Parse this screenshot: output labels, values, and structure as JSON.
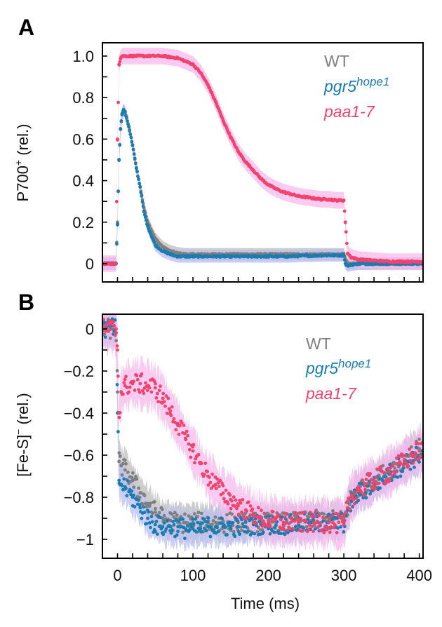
{
  "chart_data": [
    {
      "type": "scatter",
      "panel_label": "A",
      "ylabel_main": "P700",
      "ylabel_sup": "+",
      "ylabel_tail": " (rel.)",
      "xlabel": "",
      "xlim": [
        -20,
        405
      ],
      "ylim": [
        -0.088,
        1.064
      ],
      "yticks": [
        0,
        0.2,
        0.4,
        0.6,
        0.8,
        1.0
      ],
      "ytick_labels": [
        "0",
        "0.2",
        "0.4",
        "0.6",
        "0.8",
        "1.0"
      ],
      "yminor_step": 0.1,
      "xtick_step": 20,
      "xtick_labels": [],
      "legend_position": "top-right",
      "x": [
        -20,
        -10,
        -2,
        0,
        2,
        4,
        6,
        8,
        10,
        15,
        20,
        25,
        30,
        35,
        40,
        50,
        60,
        70,
        80,
        90,
        100,
        110,
        120,
        130,
        140,
        150,
        160,
        170,
        180,
        190,
        200,
        210,
        220,
        230,
        240,
        250,
        260,
        270,
        280,
        290,
        300,
        302,
        305,
        310,
        320,
        340,
        360,
        380,
        400
      ],
      "series": [
        {
          "name": "WT",
          "color": "#7f7f7f",
          "band": "#bdbdbd",
          "err": 0.03,
          "values": [
            0,
            0,
            0,
            0.2,
            0.5,
            0.65,
            0.72,
            0.74,
            0.73,
            0.66,
            0.57,
            0.46,
            0.37,
            0.27,
            0.2,
            0.12,
            0.08,
            0.06,
            0.05,
            0.045,
            0.045,
            0.045,
            0.045,
            0.045,
            0.045,
            0.045,
            0.045,
            0.045,
            0.045,
            0.045,
            0.045,
            0.045,
            0.045,
            0.045,
            0.045,
            0.045,
            0.045,
            0.045,
            0.045,
            0.045,
            0.045,
            0.02,
            0.0,
            0.0,
            0.0,
            0.0,
            0.0,
            0.0,
            0.0
          ]
        },
        {
          "name_main": "pgr5",
          "name_sup": "hope1",
          "color": "#1a7db0",
          "band": "#b9bdf2",
          "err": 0.03,
          "values": [
            0,
            0,
            0,
            0.19,
            0.5,
            0.65,
            0.72,
            0.74,
            0.73,
            0.66,
            0.57,
            0.46,
            0.37,
            0.25,
            0.18,
            0.09,
            0.06,
            0.045,
            0.035,
            0.035,
            0.035,
            0.035,
            0.035,
            0.035,
            0.035,
            0.035,
            0.035,
            0.035,
            0.035,
            0.035,
            0.035,
            0.035,
            0.035,
            0.035,
            0.037,
            0.038,
            0.038,
            0.04,
            0.04,
            0.04,
            0.04,
            0.0,
            -0.01,
            -0.005,
            0.0,
            0.0,
            0.0,
            0.0,
            0.0
          ]
        },
        {
          "name": "paa1-7",
          "color": "#f2436f",
          "band": "#f7b9ec",
          "err": 0.04,
          "values": [
            0,
            0,
            0,
            0.6,
            0.96,
            0.99,
            1.0,
            1.0,
            1.0,
            1.0,
            1.0,
            1.0,
            1.0,
            1.0,
            1.0,
            1.0,
            1.0,
            0.995,
            0.99,
            0.975,
            0.96,
            0.92,
            0.86,
            0.78,
            0.69,
            0.61,
            0.54,
            0.49,
            0.45,
            0.41,
            0.38,
            0.36,
            0.345,
            0.335,
            0.325,
            0.32,
            0.315,
            0.31,
            0.31,
            0.305,
            0.305,
            0.2,
            0.05,
            0.03,
            0.02,
            0.015,
            0.01,
            0.01,
            0.01
          ]
        }
      ]
    },
    {
      "type": "scatter",
      "panel_label": "B",
      "ylabel_main": "[Fe-S]",
      "ylabel_sup": "−",
      "ylabel_tail": " (rel.)",
      "xlabel": "Time (ms)",
      "xlim": [
        -20,
        405
      ],
      "ylim": [
        -1.09,
        0.07
      ],
      "yticks": [
        0,
        -0.2,
        -0.4,
        -0.6,
        -0.8,
        -1.0
      ],
      "ytick_labels": [
        "0",
        "−0.2",
        "−0.4",
        "−0.6",
        "−0.8",
        "−1"
      ],
      "yminor_step": 0.1,
      "xtick_step": 20,
      "xticks": [
        0,
        100,
        200,
        300,
        400
      ],
      "xtick_labels": [
        "0",
        "100",
        "200",
        "300",
        "400"
      ],
      "legend_position": "top-right",
      "x": [
        -20,
        -10,
        -2,
        0,
        2,
        5,
        10,
        20,
        30,
        40,
        50,
        60,
        70,
        80,
        90,
        100,
        110,
        120,
        130,
        140,
        150,
        160,
        170,
        180,
        190,
        200,
        220,
        240,
        260,
        280,
        300,
        305,
        310,
        320,
        340,
        360,
        380,
        400
      ],
      "series": [
        {
          "name": "WT",
          "color": "#7f7f7f",
          "band": "#bdbdbd",
          "err": 0.08,
          "noise": 0.03,
          "values": [
            0,
            0,
            0,
            -0.3,
            -0.63,
            -0.65,
            -0.67,
            -0.72,
            -0.78,
            -0.83,
            -0.87,
            -0.9,
            -0.91,
            -0.92,
            -0.92,
            -0.92,
            -0.92,
            -0.92,
            -0.92,
            -0.92,
            -0.92,
            -0.92,
            -0.92,
            -0.92,
            -0.92,
            -0.92,
            -0.92,
            -0.92,
            -0.91,
            -0.91,
            -0.91,
            -0.85,
            -0.8,
            -0.76,
            -0.72,
            -0.67,
            -0.62,
            -0.57
          ]
        },
        {
          "name_main": "pgr5",
          "name_sup": "hope1",
          "color": "#1a7db0",
          "band": "#b9bdf2",
          "err": 0.08,
          "noise": 0.03,
          "values": [
            0,
            0,
            0,
            -0.4,
            -0.72,
            -0.74,
            -0.75,
            -0.8,
            -0.85,
            -0.9,
            -0.93,
            -0.94,
            -0.94,
            -0.94,
            -0.95,
            -0.95,
            -0.95,
            -0.94,
            -0.94,
            -0.94,
            -0.94,
            -0.94,
            -0.94,
            -0.93,
            -0.93,
            -0.93,
            -0.93,
            -0.93,
            -0.92,
            -0.92,
            -0.92,
            -0.86,
            -0.82,
            -0.78,
            -0.74,
            -0.69,
            -0.64,
            -0.6
          ]
        },
        {
          "name": "paa1-7",
          "color": "#f2436f",
          "band": "#f7b9ec",
          "err": 0.1,
          "noise": 0.03,
          "values": [
            0,
            0,
            0,
            -0.1,
            -0.4,
            -0.3,
            -0.27,
            -0.26,
            -0.26,
            -0.27,
            -0.28,
            -0.33,
            -0.39,
            -0.45,
            -0.52,
            -0.58,
            -0.64,
            -0.7,
            -0.74,
            -0.78,
            -0.81,
            -0.84,
            -0.86,
            -0.88,
            -0.9,
            -0.91,
            -0.92,
            -0.92,
            -0.92,
            -0.92,
            -0.93,
            -0.85,
            -0.8,
            -0.76,
            -0.72,
            -0.68,
            -0.63,
            -0.58
          ]
        }
      ]
    }
  ]
}
